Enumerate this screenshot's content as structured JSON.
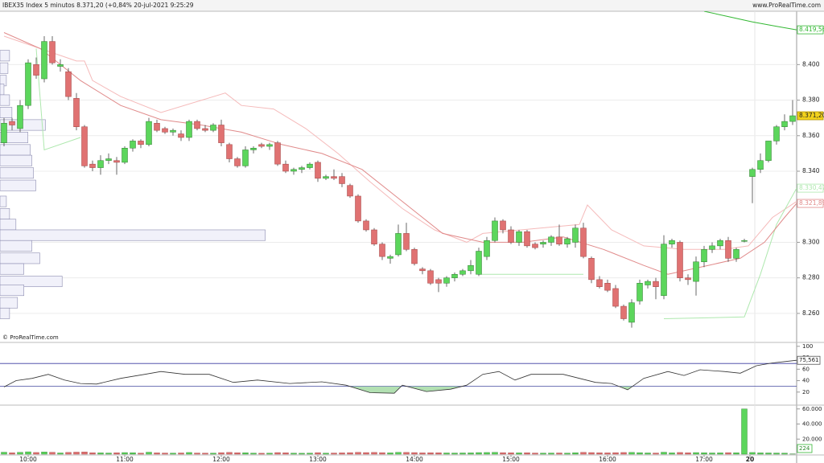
{
  "chart_data": {
    "type": "candlestick",
    "title": "IBEX35 Index 5 minutos 8.371,20 (+0,84% 20-jul-2021 9:25:29",
    "source": "www.ProRealTime.com",
    "watermark": "© ProRealTime.com",
    "ylim": [
      8250,
      8430
    ],
    "yticks": [
      {
        "value": 8400,
        "label": "8.400"
      },
      {
        "value": 8380,
        "label": "8.380"
      },
      {
        "value": 8360,
        "label": "8.360"
      },
      {
        "value": 8340,
        "label": "8.340"
      },
      {
        "value": 8300,
        "label": "8.300"
      },
      {
        "value": 8280,
        "label": "8.280"
      },
      {
        "value": 8260,
        "label": "8.260"
      }
    ],
    "xticks": [
      {
        "value": 3,
        "label": "10:00"
      },
      {
        "value": 15,
        "label": "11:00"
      },
      {
        "value": 27,
        "label": "12:00"
      },
      {
        "value": 39,
        "label": "13:00"
      },
      {
        "value": 51,
        "label": "14:00"
      },
      {
        "value": 63,
        "label": "15:00"
      },
      {
        "value": 75,
        "label": "16:00"
      },
      {
        "value": 87,
        "label": "17:00"
      },
      {
        "value": 92.7,
        "label": "20"
      }
    ],
    "up_color": "#5cd65c",
    "down_color": "#e07272",
    "ohlc": [
      [
        8356,
        8370,
        8354,
        8367
      ],
      [
        8368,
        8370,
        8363,
        8366
      ],
      [
        8364,
        8380,
        8362,
        8377
      ],
      [
        8377,
        8403,
        8375,
        8401
      ],
      [
        8400,
        8404,
        8392,
        8394
      ],
      [
        8392,
        8416,
        8390,
        8413
      ],
      [
        8413,
        8416,
        8400,
        8401
      ],
      [
        8399,
        8403,
        8396,
        8400
      ],
      [
        8396,
        8398,
        8380,
        8382
      ],
      [
        8381,
        8384,
        8363,
        8365
      ],
      [
        8365,
        8366,
        8342,
        8343
      ],
      [
        8344,
        8346,
        8340,
        8342
      ],
      [
        8342,
        8349,
        8338,
        8346
      ],
      [
        8346,
        8350,
        8344,
        8347
      ],
      [
        8346,
        8348,
        8338,
        8345
      ],
      [
        8345,
        8354,
        8344,
        8353
      ],
      [
        8353,
        8358,
        8351,
        8357
      ],
      [
        8357,
        8358,
        8353,
        8355
      ],
      [
        8355,
        8370,
        8354,
        8368
      ],
      [
        8367,
        8369,
        8362,
        8363
      ],
      [
        8364,
        8365,
        8361,
        8362
      ],
      [
        8362,
        8364,
        8360,
        8363
      ],
      [
        8361,
        8363,
        8357,
        8359
      ],
      [
        8359,
        8369,
        8357,
        8368
      ],
      [
        8368,
        8369,
        8363,
        8364
      ],
      [
        8364,
        8366,
        8362,
        8363
      ],
      [
        8363,
        8367,
        8362,
        8366
      ],
      [
        8366,
        8369,
        8354,
        8356
      ],
      [
        8355,
        8356,
        8345,
        8347
      ],
      [
        8347,
        8348,
        8342,
        8343
      ],
      [
        8343,
        8354,
        8342,
        8352
      ],
      [
        8352,
        8354,
        8350,
        8353
      ],
      [
        8355,
        8356,
        8353,
        8354
      ],
      [
        8354,
        8356,
        8352,
        8355
      ],
      [
        8356,
        8357,
        8343,
        8344
      ],
      [
        8344,
        8346,
        8339,
        8340
      ],
      [
        8340,
        8342,
        8338,
        8341
      ],
      [
        8341,
        8343,
        8339,
        8342
      ],
      [
        8342,
        8345,
        8341,
        8344
      ],
      [
        8345,
        8346,
        8334,
        8336
      ],
      [
        8336,
        8338,
        8335,
        8337
      ],
      [
        8337,
        8341,
        8335,
        8336
      ],
      [
        8337,
        8339,
        8331,
        8333
      ],
      [
        8332,
        8333,
        8325,
        8326
      ],
      [
        8326,
        8327,
        8311,
        8312
      ],
      [
        8312,
        8313,
        8306,
        8307
      ],
      [
        8307,
        8308,
        8298,
        8299
      ],
      [
        8299,
        8300,
        8290,
        8292
      ],
      [
        8291,
        8293,
        8288,
        8292
      ],
      [
        8293,
        8310,
        8292,
        8305
      ],
      [
        8305,
        8311,
        8295,
        8296
      ],
      [
        8296,
        8297,
        8287,
        8288
      ],
      [
        8285,
        8286,
        8282,
        8284
      ],
      [
        8284,
        8285,
        8276,
        8277
      ],
      [
        8279,
        8280,
        8272,
        8277
      ],
      [
        8277,
        8281,
        8275,
        8280
      ],
      [
        8280,
        8283,
        8278,
        8282
      ],
      [
        8282,
        8285,
        8281,
        8284
      ],
      [
        8284,
        8290,
        8282,
        8287
      ],
      [
        8282,
        8297,
        8281,
        8295
      ],
      [
        8292,
        8303,
        8290,
        8301
      ],
      [
        8301,
        8314,
        8300,
        8312
      ],
      [
        8312,
        8313,
        8305,
        8307
      ],
      [
        8307,
        8309,
        8299,
        8300
      ],
      [
        8300,
        8307,
        8298,
        8306
      ],
      [
        8306,
        8307,
        8297,
        8298
      ],
      [
        8299,
        8300,
        8296,
        8297
      ],
      [
        8299,
        8301,
        8297,
        8300
      ],
      [
        8300,
        8304,
        8298,
        8303
      ],
      [
        8303,
        8310,
        8298,
        8299
      ],
      [
        8299,
        8303,
        8297,
        8302
      ],
      [
        8300,
        8310,
        8297,
        8308
      ],
      [
        8308,
        8311,
        8291,
        8292
      ],
      [
        8291,
        8292,
        8277,
        8279
      ],
      [
        8279,
        8281,
        8274,
        8275
      ],
      [
        8277,
        8279,
        8272,
        8273
      ],
      [
        8274,
        8276,
        8263,
        8264
      ],
      [
        8264,
        8265,
        8256,
        8257
      ],
      [
        8255,
        8268,
        8252,
        8266
      ],
      [
        8267,
        8279,
        8265,
        8277
      ],
      [
        8276,
        8279,
        8274,
        8278
      ],
      [
        8278,
        8280,
        8268,
        8275
      ],
      [
        8270,
        8304,
        8268,
        8299
      ],
      [
        8299,
        8302,
        8297,
        8301
      ],
      [
        8300,
        8301,
        8278,
        8280
      ],
      [
        8280,
        8282,
        8276,
        8279
      ],
      [
        8278,
        8292,
        8270,
        8289
      ],
      [
        8289,
        8298,
        8286,
        8296
      ],
      [
        8296,
        8300,
        8294,
        8298
      ],
      [
        8298,
        8302,
        8296,
        8301
      ],
      [
        8301,
        8303,
        8289,
        8291
      ],
      [
        8291,
        8297,
        8289,
        8296
      ],
      [
        8301,
        8302,
        8300,
        8301
      ],
      [
        8337,
        8342,
        8322,
        8341
      ],
      [
        8341,
        8350,
        8339,
        8346
      ],
      [
        8346,
        8357,
        8345,
        8357
      ],
      [
        8357,
        8366,
        8355,
        8365
      ],
      [
        8365,
        8372,
        8363,
        8368
      ],
      [
        8368,
        8380,
        8366,
        8371.2
      ]
    ],
    "last_price": {
      "value": 8371.2,
      "label": "8.371,20",
      "color": "#f2d21b"
    },
    "overlays": [
      {
        "color": "#33b833",
        "x": [
          87,
          90,
          93,
          96,
          98.5
        ],
        "values": [
          8430,
          8427,
          8424,
          8421.5,
          8419.56
        ],
        "end_label": "8.419,56"
      },
      {
        "color": "#f5baba",
        "x": [
          0,
          4.5,
          9,
          10,
          11,
          14.5,
          19.5,
          27.5,
          29.5,
          33.5,
          37.5,
          41.5,
          45.5,
          49.5,
          53.5,
          57.5,
          59.5,
          71.5,
          72.5,
          75.5,
          79.5,
          84.5,
          89.5,
          92.5,
          95.5,
          98.5
        ],
        "values": [
          8416,
          8409,
          8402,
          8402,
          8391,
          8382,
          8373,
          8384,
          8377,
          8375,
          8364,
          8350,
          8334,
          8319,
          8307,
          8300,
          8305,
          8310,
          8321,
          8307,
          8298,
          8296,
          8296,
          8298,
          8314,
          8323
        ]
      },
      {
        "color": "#aee8ae",
        "x": [
          4,
          5,
          9.5,
          10,
          59,
          72,
          73,
          82,
          92,
          94,
          96,
          98.5
        ],
        "values": [
          8409,
          8352,
          8359,
          null,
          8282,
          8282,
          null,
          8257,
          8258,
          8282,
          8310,
          8330.47
        ],
        "end_label": "8.330,47"
      },
      {
        "color": "#e08a8a",
        "x": [
          0,
          4.5,
          9.5,
          14.5,
          19.5,
          24.5,
          29.5,
          34.5,
          39.5,
          44.5,
          49.5,
          54.5,
          59.5,
          64.5,
          69.5,
          74.5,
          79.5,
          82.5,
          87.5,
          91.5,
          94.5,
          97,
          98.5
        ],
        "values": [
          8418,
          8409,
          8391,
          8377,
          8369,
          8366,
          8362,
          8355,
          8350,
          8341,
          8323,
          8305,
          8300,
          8300,
          8303,
          8296,
          8287,
          8282,
          8287,
          8291,
          8300,
          8314,
          8321.89
        ],
        "end_label": "8.321,89"
      }
    ],
    "volume_profile": {
      "xlim": [
        0,
        1000
      ],
      "step": 6,
      "prices": [
        8405,
        8398,
        8391,
        8386,
        8380,
        8373,
        8366,
        8359,
        8352,
        8346,
        8339,
        8332,
        8323,
        8316,
        8310,
        8304,
        8298,
        8291,
        8285,
        8278,
        8273,
        8266,
        8260
      ],
      "values": [
        12,
        10,
        8,
        5,
        12,
        15,
        57,
        35,
        38,
        40,
        42,
        45,
        8,
        12,
        20,
        333,
        40,
        50,
        30,
        78,
        30,
        22,
        12
      ]
    },
    "rsi": {
      "ylim": [
        0,
        104
      ],
      "yticks": [
        100,
        80,
        60,
        40,
        20
      ],
      "levels": [
        30,
        70
      ],
      "color": "#333333",
      "x": [
        0,
        1.5,
        3.5,
        5.5,
        7.5,
        9.5,
        11.5,
        14.5,
        17.5,
        19.5,
        22.5,
        25.5,
        28.5,
        31.5,
        35.5,
        39.5,
        42.5,
        45.5,
        48.5,
        49.5,
        52.5,
        55.5,
        57.5,
        59.5,
        61.5,
        63.5,
        65.5,
        69.5,
        71.5,
        73.5,
        75.5,
        77.5,
        79.5,
        82.5,
        84.5,
        86.5,
        89.5,
        91.5,
        93.5,
        95.5,
        97.5,
        98.5
      ],
      "values": [
        29,
        40,
        44,
        51,
        41,
        35,
        34,
        44,
        51,
        56,
        51,
        51,
        37,
        41,
        35,
        38,
        32,
        19,
        18,
        32,
        21,
        25,
        32,
        51,
        56,
        41,
        51,
        51,
        44,
        37,
        35,
        24,
        44,
        56,
        49,
        59,
        56,
        53,
        66,
        71,
        74,
        75.561
      ],
      "last": {
        "value": 75.561,
        "label": "75,561"
      }
    },
    "volume": {
      "ylim": [
        0,
        64000
      ],
      "yticks": [
        {
          "value": 60000,
          "label": "60.000"
        },
        {
          "value": 40000,
          "label": "40.000"
        },
        {
          "value": 20000,
          "label": "20.000"
        }
      ],
      "values": [
        2600,
        1800,
        2400,
        3100,
        2200,
        2900,
        2500,
        1600,
        2300,
        2700,
        3000,
        1900,
        1700,
        1500,
        1800,
        2100,
        1900,
        1400,
        2600,
        1700,
        1500,
        1300,
        1600,
        2200,
        1500,
        1400,
        1300,
        2000,
        2300,
        1900,
        1800,
        1400,
        1200,
        1300,
        2100,
        1800,
        1300,
        1200,
        1400,
        2000,
        1300,
        1500,
        1700,
        2000,
        2400,
        2100,
        2300,
        2000,
        1700,
        2400,
        2300,
        2100,
        1700,
        1900,
        1800,
        1600,
        1500,
        1600,
        1700,
        2100,
        2200,
        2400,
        2000,
        1800,
        1700,
        1900,
        1500,
        1400,
        1500,
        1600,
        1400,
        1900,
        2400,
        2100,
        1800,
        1700,
        2000,
        2200,
        2300,
        2000,
        1600,
        1500,
        2600,
        1700,
        2200,
        1800,
        2100,
        1900,
        1600,
        1700,
        2000,
        1800,
        60000,
        2200,
        1700,
        1600,
        1500,
        1400,
        224
      ],
      "last": {
        "value": 224,
        "label": "224"
      }
    }
  }
}
